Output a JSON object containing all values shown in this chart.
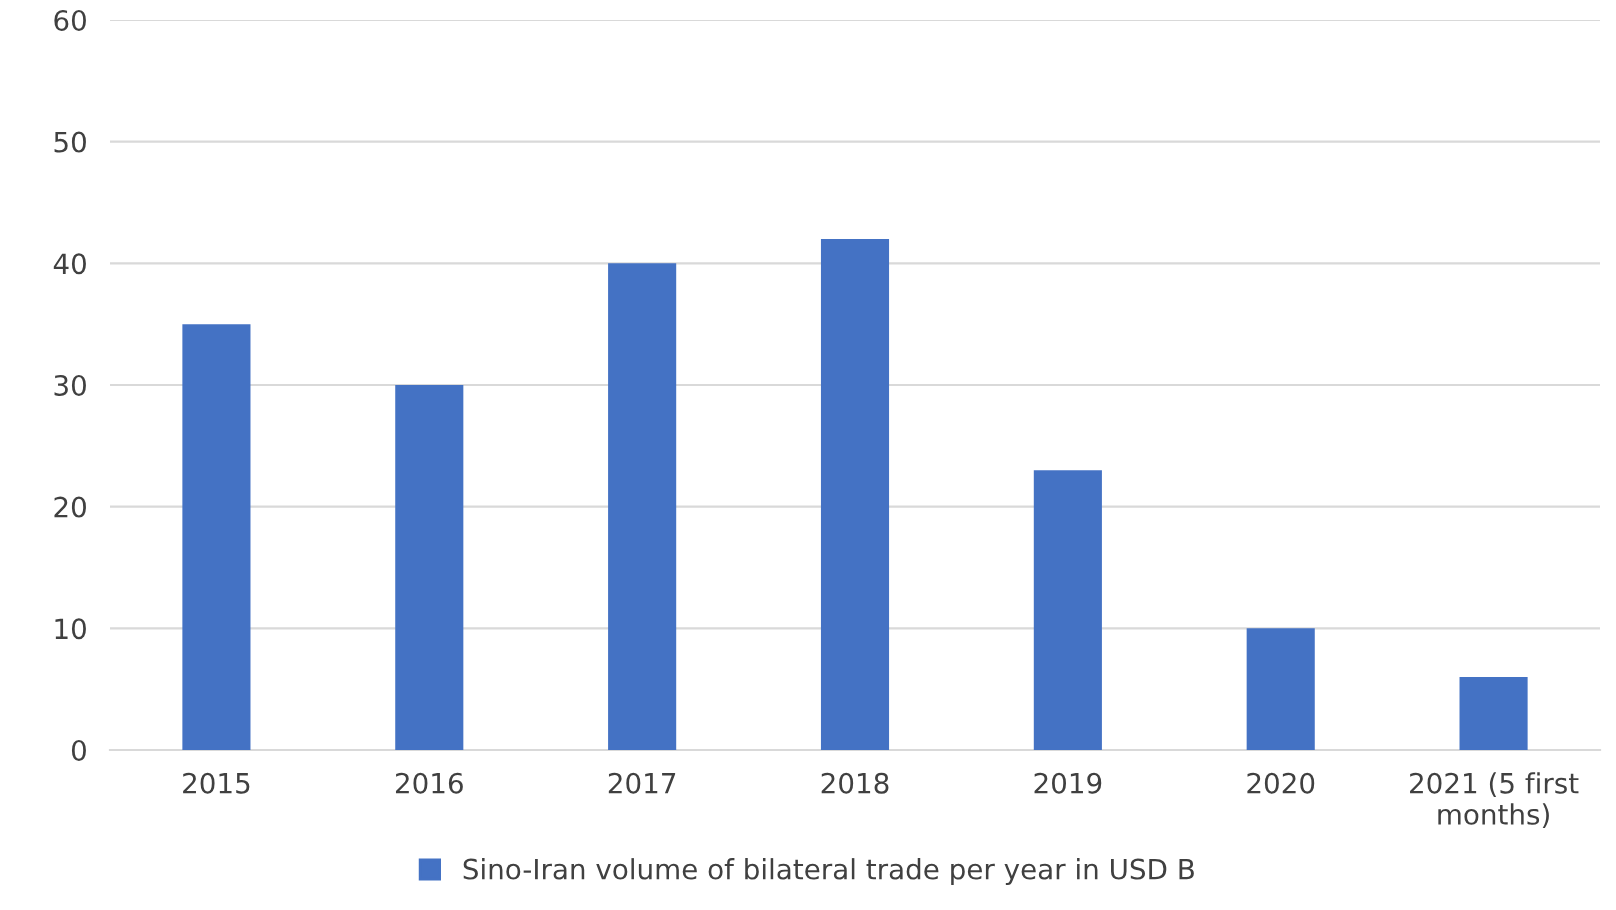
{
  "chart_data": {
    "type": "bar",
    "categories": [
      "2015",
      "2016",
      "2017",
      "2018",
      "2019",
      "2020",
      "2021 (5 first months)"
    ],
    "series": [
      {
        "name": "Sino-Iran volume of bilateral trade per year in USD B",
        "color": "#4472c4",
        "values": [
          35,
          30,
          40,
          42,
          23,
          10,
          6
        ]
      }
    ],
    "ylim": [
      0,
      60
    ],
    "yticks": [
      0,
      10,
      20,
      30,
      40,
      50,
      60
    ],
    "grid": "y",
    "legend": "bottom"
  }
}
